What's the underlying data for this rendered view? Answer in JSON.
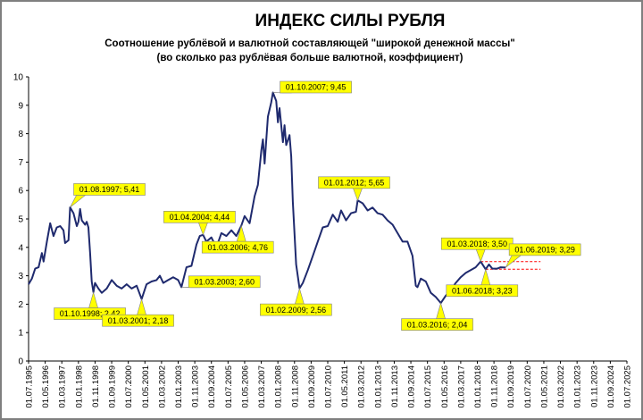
{
  "chart_data": {
    "type": "line",
    "title": "ИНДЕКС СИЛЫ РУБЛЯ",
    "subtitle_lines": [
      "Соотношение рублёвой и валютной  составляющей \"широкой денежной массы\"",
      "(во сколько раз рублёвая больше валютной, коэффициент)"
    ],
    "ylim": [
      0,
      10
    ],
    "yticks": [
      "0",
      "1",
      "2",
      "3",
      "4",
      "5",
      "6",
      "7",
      "8",
      "9",
      "10"
    ],
    "xlim": [
      "1995-07-01",
      "2025-07-01"
    ],
    "xtick_labels": [
      "01.07.1995",
      "01.05.1996",
      "01.03.1997",
      "01.01.1998",
      "01.11.1998",
      "01.09.1999",
      "01.07.2000",
      "01.05.2001",
      "01.03.2002",
      "01.01.2003",
      "01.11.2003",
      "01.09.2004",
      "01.07.2005",
      "01.05.2006",
      "01.03.2007",
      "01.01.2008",
      "01.11.2008",
      "01.09.2009",
      "01.07.2010",
      "01.05.2011",
      "01.03.2012",
      "01.01.2013",
      "01.11.2013",
      "01.09.2014",
      "01.07.2015",
      "01.05.2016",
      "01.03.2017",
      "01.01.2018",
      "01.11.2018",
      "01.09.2019",
      "01.07.2020",
      "01.05.2021",
      "01.03.2022",
      "01.01.2023",
      "01.11.2023",
      "01.09.2024",
      "01.07.2025"
    ],
    "grid": false,
    "series": [
      {
        "color": "#1f2a6e",
        "points": [
          [
            "1995-07-01",
            2.7
          ],
          [
            "1995-09-01",
            2.9
          ],
          [
            "1995-11-01",
            3.25
          ],
          [
            "1996-01-01",
            3.3
          ],
          [
            "1996-03-01",
            3.8
          ],
          [
            "1996-04-01",
            3.5
          ],
          [
            "1996-06-01",
            4.2
          ],
          [
            "1996-08-01",
            4.85
          ],
          [
            "1996-10-01",
            4.4
          ],
          [
            "1996-12-01",
            4.7
          ],
          [
            "1997-02-01",
            4.75
          ],
          [
            "1997-04-01",
            4.6
          ],
          [
            "1997-05-01",
            4.15
          ],
          [
            "1997-07-01",
            4.25
          ],
          [
            "1997-08-01",
            5.41
          ],
          [
            "1997-10-01",
            5.2
          ],
          [
            "1997-12-01",
            4.75
          ],
          [
            "1998-01-01",
            4.9
          ],
          [
            "1998-02-01",
            5.35
          ],
          [
            "1998-03-01",
            4.95
          ],
          [
            "1998-05-01",
            4.8
          ],
          [
            "1998-06-01",
            4.9
          ],
          [
            "1998-07-01",
            4.7
          ],
          [
            "1998-08-01",
            3.8
          ],
          [
            "1998-09-01",
            2.8
          ],
          [
            "1998-10-01",
            2.42
          ],
          [
            "1998-11-01",
            2.75
          ],
          [
            "1999-01-01",
            2.55
          ],
          [
            "1999-03-01",
            2.4
          ],
          [
            "1999-06-01",
            2.55
          ],
          [
            "1999-09-01",
            2.85
          ],
          [
            "1999-12-01",
            2.65
          ],
          [
            "2000-03-01",
            2.55
          ],
          [
            "2000-06-01",
            2.7
          ],
          [
            "2000-09-01",
            2.55
          ],
          [
            "2000-12-01",
            2.65
          ],
          [
            "2001-03-01",
            2.18
          ],
          [
            "2001-06-01",
            2.7
          ],
          [
            "2001-09-01",
            2.8
          ],
          [
            "2001-12-01",
            2.85
          ],
          [
            "2002-02-01",
            3.0
          ],
          [
            "2002-04-01",
            2.75
          ],
          [
            "2002-07-01",
            2.85
          ],
          [
            "2002-10-01",
            2.95
          ],
          [
            "2003-01-01",
            2.85
          ],
          [
            "2003-03-01",
            2.6
          ],
          [
            "2003-06-01",
            3.3
          ],
          [
            "2003-09-01",
            3.35
          ],
          [
            "2003-12-01",
            4.1
          ],
          [
            "2004-02-01",
            4.4
          ],
          [
            "2004-04-01",
            4.44
          ],
          [
            "2004-06-01",
            4.2
          ],
          [
            "2004-09-01",
            4.35
          ],
          [
            "2004-12-01",
            4.0
          ],
          [
            "2005-03-01",
            4.5
          ],
          [
            "2005-06-01",
            4.4
          ],
          [
            "2005-09-01",
            4.6
          ],
          [
            "2005-12-01",
            4.4
          ],
          [
            "2006-03-01",
            4.76
          ],
          [
            "2006-05-01",
            5.1
          ],
          [
            "2006-08-01",
            4.85
          ],
          [
            "2006-11-01",
            5.8
          ],
          [
            "2007-01-01",
            6.2
          ],
          [
            "2007-03-01",
            7.4
          ],
          [
            "2007-04-01",
            7.8
          ],
          [
            "2007-05-01",
            6.95
          ],
          [
            "2007-07-01",
            8.6
          ],
          [
            "2007-09-01",
            9.1
          ],
          [
            "2007-10-01",
            9.45
          ],
          [
            "2007-12-01",
            9.15
          ],
          [
            "2008-01-01",
            8.4
          ],
          [
            "2008-02-01",
            8.9
          ],
          [
            "2008-04-01",
            7.7
          ],
          [
            "2008-05-01",
            8.3
          ],
          [
            "2008-06-01",
            7.6
          ],
          [
            "2008-08-01",
            7.95
          ],
          [
            "2008-09-01",
            7.2
          ],
          [
            "2008-10-01",
            5.6
          ],
          [
            "2008-12-01",
            3.4
          ],
          [
            "2009-02-01",
            2.56
          ],
          [
            "2009-04-01",
            2.75
          ],
          [
            "2009-07-01",
            3.2
          ],
          [
            "2009-10-01",
            3.7
          ],
          [
            "2010-01-01",
            4.2
          ],
          [
            "2010-04-01",
            4.7
          ],
          [
            "2010-07-01",
            4.75
          ],
          [
            "2010-10-01",
            5.15
          ],
          [
            "2011-01-01",
            4.9
          ],
          [
            "2011-03-01",
            5.3
          ],
          [
            "2011-06-01",
            4.95
          ],
          [
            "2011-09-01",
            5.2
          ],
          [
            "2011-12-01",
            5.25
          ],
          [
            "2012-01-01",
            5.65
          ],
          [
            "2012-04-01",
            5.55
          ],
          [
            "2012-07-01",
            5.3
          ],
          [
            "2012-10-01",
            5.4
          ],
          [
            "2013-01-01",
            5.2
          ],
          [
            "2013-04-01",
            5.15
          ],
          [
            "2013-07-01",
            4.95
          ],
          [
            "2013-10-01",
            4.8
          ],
          [
            "2014-01-01",
            4.5
          ],
          [
            "2014-04-01",
            4.2
          ],
          [
            "2014-07-01",
            4.2
          ],
          [
            "2014-10-01",
            3.7
          ],
          [
            "2014-12-01",
            2.65
          ],
          [
            "2015-01-01",
            2.6
          ],
          [
            "2015-03-01",
            2.9
          ],
          [
            "2015-06-01",
            2.8
          ],
          [
            "2015-09-01",
            2.4
          ],
          [
            "2015-12-01",
            2.25
          ],
          [
            "2016-03-01",
            2.04
          ],
          [
            "2016-06-01",
            2.3
          ],
          [
            "2016-09-01",
            2.5
          ],
          [
            "2016-12-01",
            2.75
          ],
          [
            "2017-03-01",
            2.95
          ],
          [
            "2017-06-01",
            3.1
          ],
          [
            "2017-09-01",
            3.2
          ],
          [
            "2017-12-01",
            3.3
          ],
          [
            "2018-03-01",
            3.5
          ],
          [
            "2018-06-01",
            3.23
          ],
          [
            "2018-08-01",
            3.4
          ],
          [
            "2018-10-01",
            3.25
          ],
          [
            "2019-01-01",
            3.25
          ],
          [
            "2019-03-01",
            3.3
          ],
          [
            "2019-06-01",
            3.29
          ]
        ]
      }
    ],
    "reference_lines": [
      {
        "y": 3.5,
        "x_from": "2018-03-01",
        "x_to": "2021-03-01",
        "color": "#ff0000",
        "style": "dashed"
      },
      {
        "y": 3.23,
        "x_from": "2018-06-01",
        "x_to": "2021-03-01",
        "color": "#ff0000",
        "style": "dashed"
      }
    ],
    "annotations": [
      {
        "text": "01.08.1997; 5,41",
        "x": "1997-08-01",
        "y": 5.41,
        "placement": "above-right"
      },
      {
        "text": "01.10.1998; 2,42",
        "x": "1998-10-01",
        "y": 2.42,
        "placement": "below"
      },
      {
        "text": "01.03.2001; 2,18",
        "x": "2001-03-01",
        "y": 2.18,
        "placement": "below"
      },
      {
        "text": "01.03.2003; 2,60",
        "x": "2003-03-01",
        "y": 2.6,
        "placement": "right"
      },
      {
        "text": "01.04.2004; 4,44",
        "x": "2004-04-01",
        "y": 4.44,
        "placement": "above"
      },
      {
        "text": "01.03.2006; 4,76",
        "x": "2006-03-01",
        "y": 4.76,
        "placement": "below"
      },
      {
        "text": "01.10.2007; 9,45",
        "x": "2007-10-01",
        "y": 9.45,
        "placement": "right"
      },
      {
        "text": "01.02.2009; 2,56",
        "x": "2009-02-01",
        "y": 2.56,
        "placement": "below"
      },
      {
        "text": "01.01.2012; 5,65",
        "x": "2012-01-01",
        "y": 5.65,
        "placement": "above"
      },
      {
        "text": "01.03.2016; 2,04",
        "x": "2016-03-01",
        "y": 2.04,
        "placement": "below"
      },
      {
        "text": "01.03.2018; 3,50",
        "x": "2018-03-01",
        "y": 3.5,
        "placement": "above"
      },
      {
        "text": "01.06.2018; 3,23",
        "x": "2018-06-01",
        "y": 3.23,
        "placement": "below"
      },
      {
        "text": "01.06.2019; 3,29",
        "x": "2019-06-01",
        "y": 3.29,
        "placement": "above-right"
      }
    ],
    "annotation_style": {
      "fill": "#ffff00",
      "stroke": "#808080"
    }
  }
}
